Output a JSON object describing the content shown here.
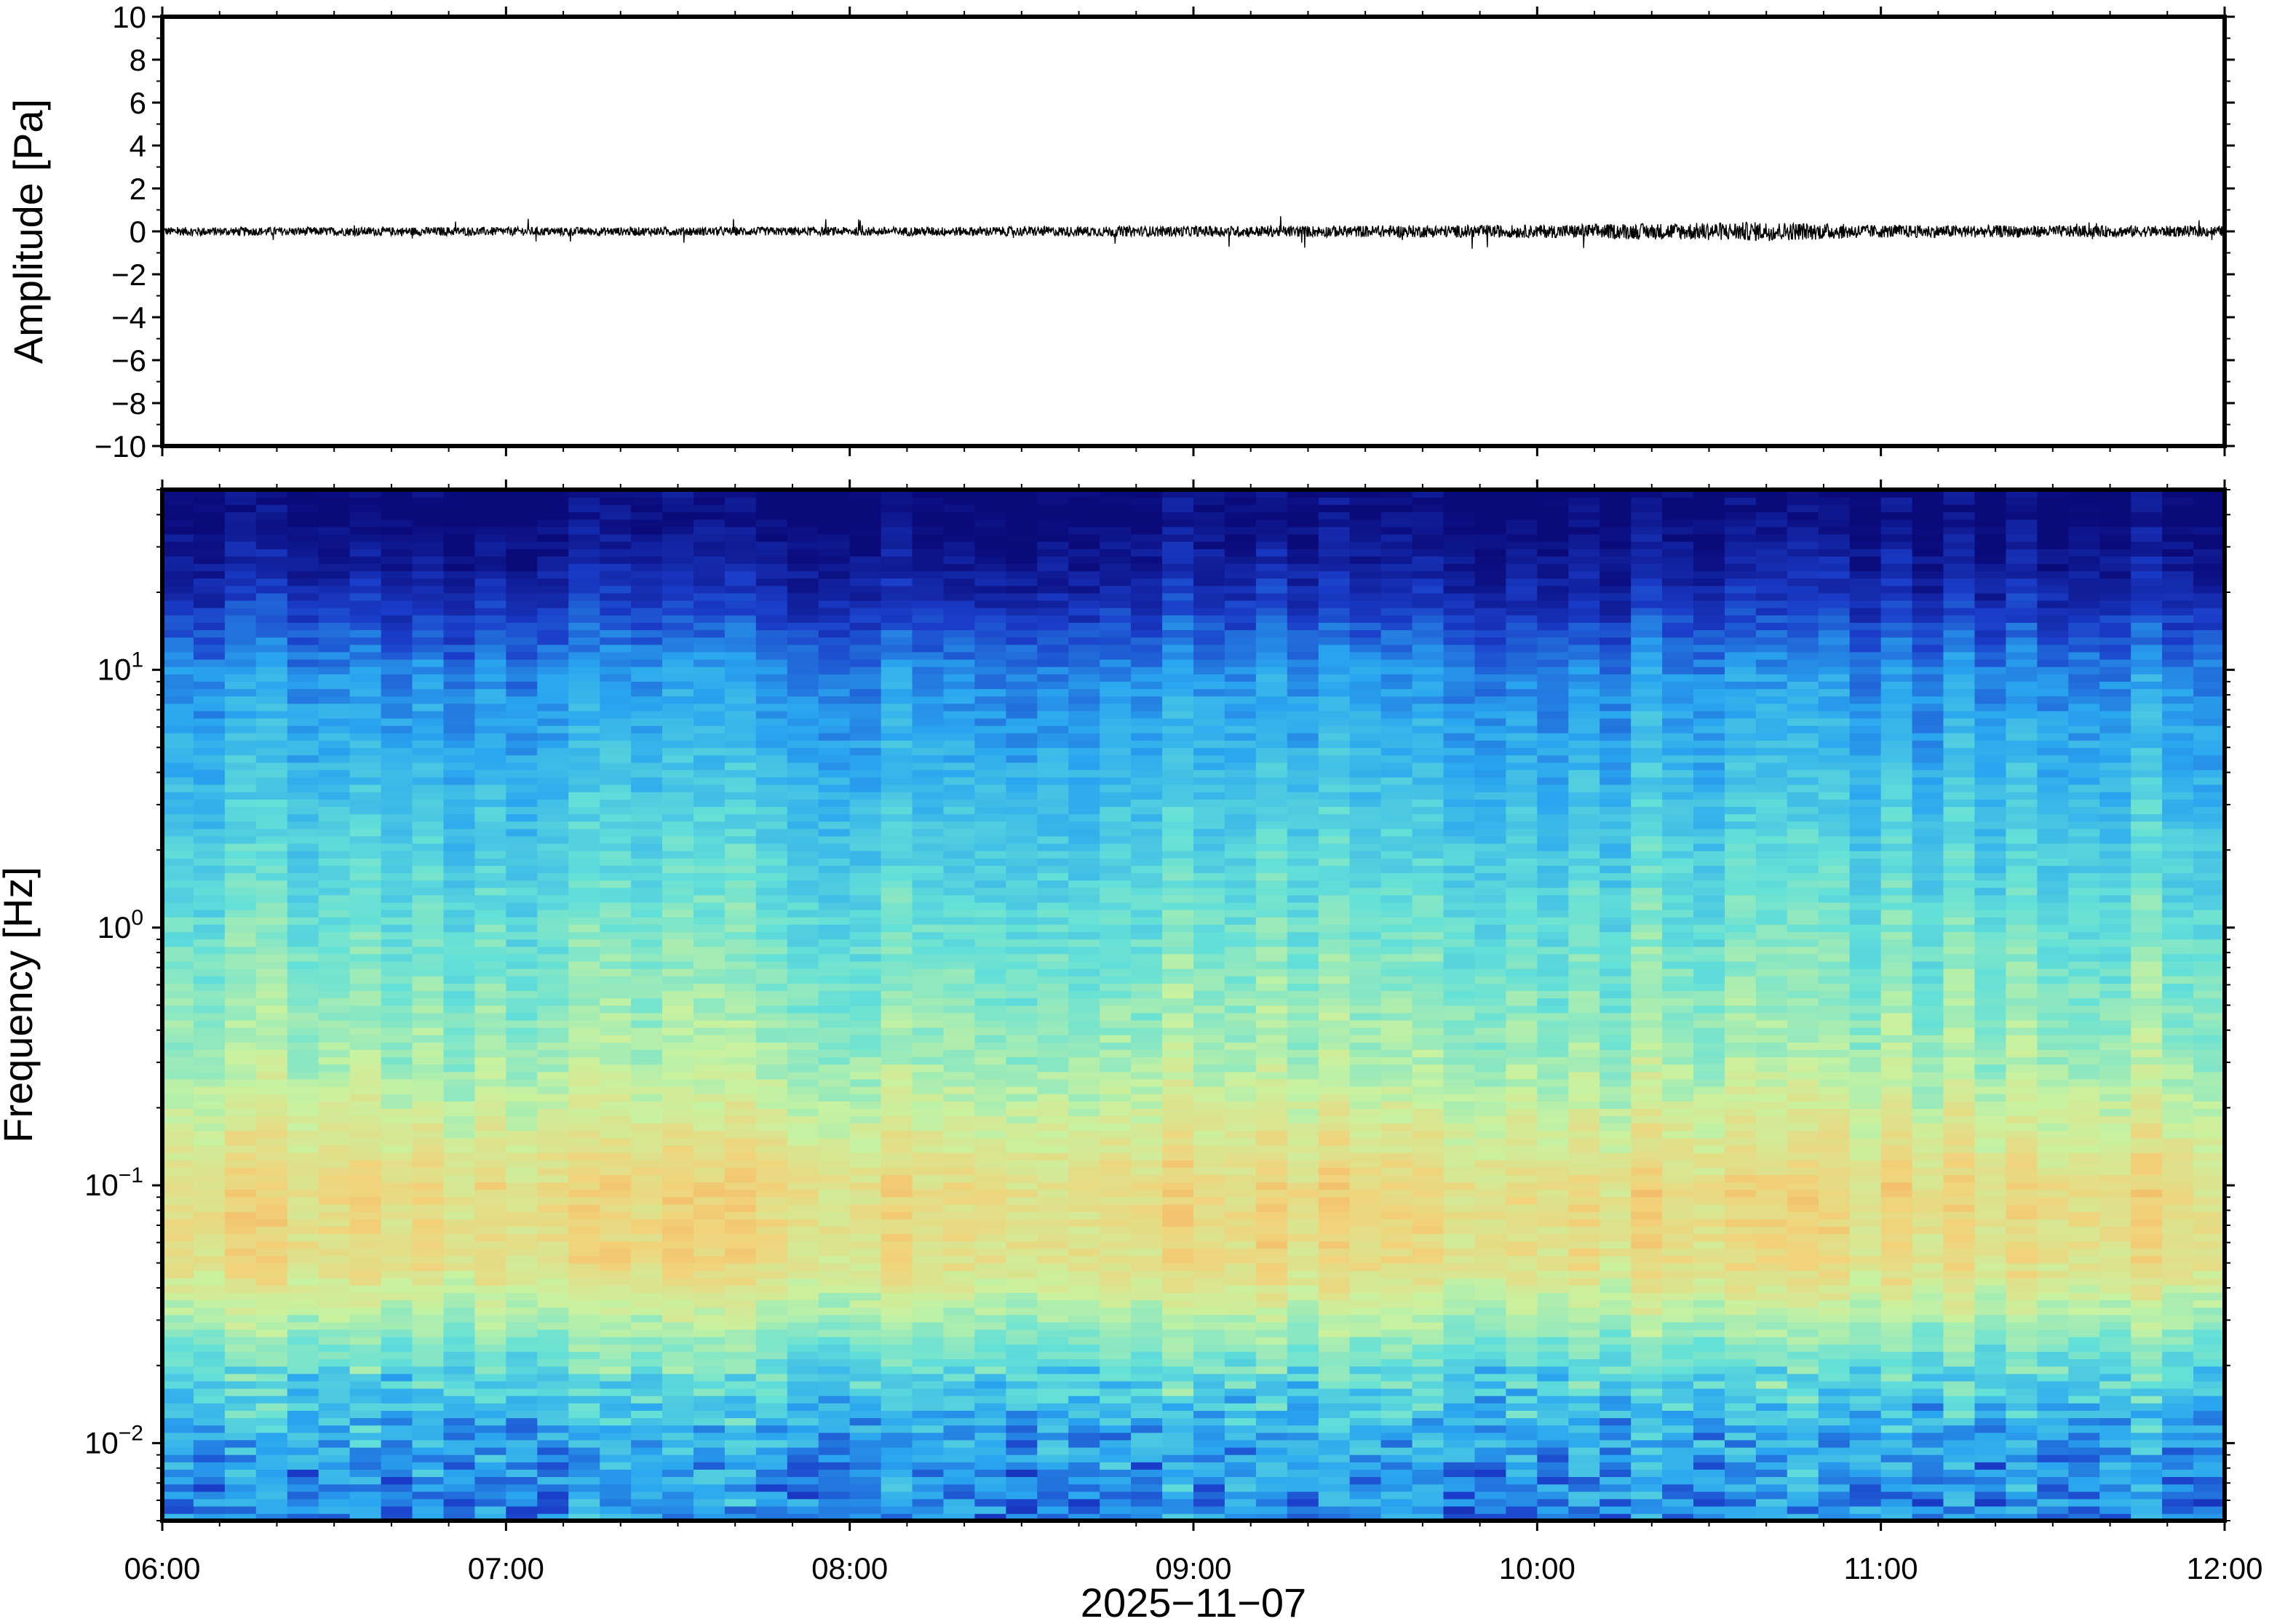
{
  "chart_data": [
    {
      "type": "line",
      "ylabel": "Amplitude [Pa]",
      "ylim": [
        -10,
        10
      ],
      "yticks": [
        10,
        8,
        6,
        4,
        2,
        0,
        -2,
        -4,
        -6,
        -8,
        -10
      ],
      "ytick_labels": [
        "10",
        "8",
        "6",
        "4",
        "2",
        "0",
        "−2",
        "−4",
        "−6",
        "−8",
        "−10"
      ],
      "xlim": [
        "2025-11-07T06:00",
        "2025-11-07T12:00"
      ],
      "series": [
        {
          "color": "#000000",
          "description_values": "noise around 0 Pa, envelope roughly ±0.2 to ±0.5 Pa",
          "envelope": [
            {
              "x": "06:00",
              "y": 0.2
            },
            {
              "x": "07:00",
              "y": 0.2
            },
            {
              "x": "08:00",
              "y": 0.2
            },
            {
              "x": "09:00",
              "y": 0.25
            },
            {
              "x": "10:00",
              "y": 0.3
            },
            {
              "x": "10:40",
              "y": 0.45
            },
            {
              "x": "11:00",
              "y": 0.3
            },
            {
              "x": "12:00",
              "y": 0.25
            }
          ]
        }
      ]
    },
    {
      "type": "heatmap",
      "ylabel": "Frequency [Hz]",
      "xlabel": "2025−11−07",
      "yscale": "log",
      "ylim": [
        0.005,
        50
      ],
      "yticks": [
        0.01,
        0.1,
        1,
        10
      ],
      "ytick_labels": [
        {
          "base": "10",
          "exp": "−2"
        },
        {
          "base": "10",
          "exp": "−1"
        },
        {
          "base": "10",
          "exp": "0"
        },
        {
          "base": "10",
          "exp": "1"
        }
      ],
      "xticks": [
        "06:00",
        "07:00",
        "08:00",
        "09:00",
        "10:00",
        "11:00",
        "12:00"
      ],
      "colormap": "jet",
      "colors": [
        "#0a0a7a",
        "#1a3cc8",
        "#2aa6f0",
        "#63e0d8",
        "#c8f2a0",
        "#f2d27a",
        "#f59a4e"
      ],
      "power_profile": [
        {
          "freq": 40,
          "level": 0.0
        },
        {
          "freq": 20,
          "level": 0.12
        },
        {
          "freq": 10,
          "level": 0.3
        },
        {
          "freq": 3,
          "level": 0.42
        },
        {
          "freq": 1,
          "level": 0.52
        },
        {
          "freq": 0.3,
          "level": 0.62
        },
        {
          "freq": 0.1,
          "level": 0.8
        },
        {
          "freq": 0.05,
          "level": 0.78
        },
        {
          "freq": 0.02,
          "level": 0.5
        },
        {
          "freq": 0.01,
          "level": 0.35
        },
        {
          "freq": 0.006,
          "level": 0.3
        }
      ]
    }
  ]
}
